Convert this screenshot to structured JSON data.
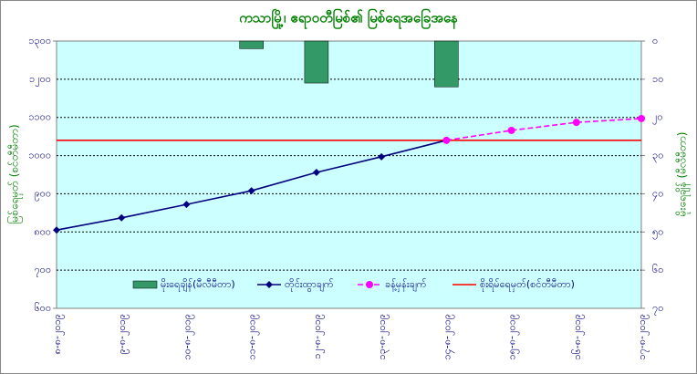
{
  "chart_data": {
    "type": "line",
    "title": "ကသာမြို့၊ ဧရာဝတီမြစ်၏ မြစ်ရေအခြေအနေ",
    "y_label": "မြစ်ရေမှတ် (စင်တီမီတာ)",
    "y2_label": "မိုးရေချိန် (မီလီမီတာ)",
    "categories": [
      "၈-၈-၂၀၁၉",
      "၉-၈-၂၀၁၉",
      "၁၀-၈-၂၀၁၉",
      "၁၁-၈-၂၀၁၉",
      "၁၂-၈-၂၀၁၉",
      "၁၃-၈-၂၀၁၉",
      "၁၄-၈-၂၀၁၉",
      "၁၅-၈-၂၀၁၉",
      "၁၆-၈-၂၀၁၉",
      "၁၇-၈-၂၀၁၉"
    ],
    "series": [
      {
        "name": "မိုးရေချိန်(မီလီမီတာ)",
        "type": "bar",
        "axis": "y2",
        "color": "#339966",
        "values": [
          0,
          0,
          0,
          2,
          11,
          0,
          12,
          null,
          null,
          null
        ]
      },
      {
        "name": "တိုင်းထွာချက်",
        "type": "line",
        "color": "#000080",
        "values": [
          805,
          837,
          872,
          908,
          956,
          997,
          1040,
          null,
          null,
          null
        ]
      },
      {
        "name": "ခန့်မှန်းချက်",
        "type": "line",
        "dashed": true,
        "color": "#ff00ff",
        "values": [
          null,
          null,
          null,
          null,
          null,
          null,
          1040,
          1066,
          1087,
          1097
        ]
      }
    ],
    "reference_line": {
      "name": "စိုးရိမ်ရေမှတ်(စင်တီမီတာ)",
      "value": 1040,
      "color": "#ff0000"
    },
    "ylim": [
      600,
      1300
    ],
    "yticks": [
      {
        "value": 600,
        "label": "၆၀၀"
      },
      {
        "value": 700,
        "label": "၇၀၀"
      },
      {
        "value": 800,
        "label": "၈၀၀"
      },
      {
        "value": 900,
        "label": "၉၀၀"
      },
      {
        "value": 1000,
        "label": "၁၀၀၀"
      },
      {
        "value": 1100,
        "label": "၁၁၀၀"
      },
      {
        "value": 1200,
        "label": "၁၂၀၀"
      },
      {
        "value": 1300,
        "label": "၁၃၀၀"
      }
    ],
    "y2lim": [
      0,
      70
    ],
    "y2_inverted": true,
    "y2ticks": [
      {
        "value": 0,
        "label": "၀"
      },
      {
        "value": 10,
        "label": "၁၀"
      },
      {
        "value": 20,
        "label": "၂၀"
      },
      {
        "value": 30,
        "label": "၃၀"
      },
      {
        "value": 40,
        "label": "၄၀"
      },
      {
        "value": 50,
        "label": "၅၀"
      },
      {
        "value": 60,
        "label": "၆၀"
      },
      {
        "value": 70,
        "label": "၇၀"
      }
    ],
    "grid": true,
    "legend": "bottom"
  }
}
